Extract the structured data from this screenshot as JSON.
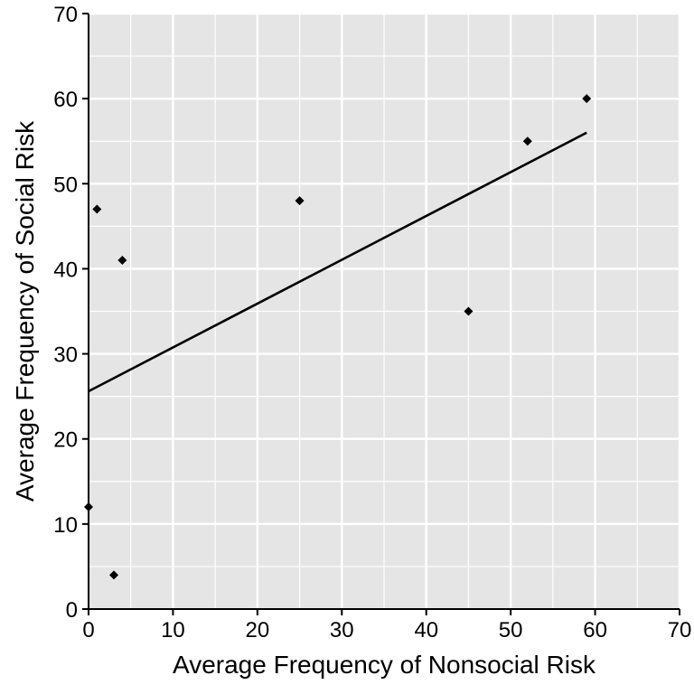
{
  "chart_data": {
    "type": "scatter",
    "title": "",
    "xlabel": "Average Frequency of Nonsocial Risk",
    "ylabel": "Average Frequency of Social Risk",
    "xlim": [
      0,
      70
    ],
    "ylim": [
      0,
      70
    ],
    "x_ticks": [
      0,
      10,
      20,
      30,
      40,
      50,
      60,
      70
    ],
    "y_ticks": [
      0,
      10,
      20,
      30,
      40,
      50,
      60,
      70
    ],
    "grid": true,
    "legend": "none",
    "points": [
      {
        "x": 0,
        "y": 12
      },
      {
        "x": 1,
        "y": 47
      },
      {
        "x": 3,
        "y": 4
      },
      {
        "x": 4,
        "y": 41
      },
      {
        "x": 25,
        "y": 48
      },
      {
        "x": 45,
        "y": 35
      },
      {
        "x": 52,
        "y": 55
      },
      {
        "x": 59,
        "y": 60
      }
    ],
    "trendline": {
      "x": [
        0,
        59
      ],
      "y": [
        25.6,
        56.0
      ]
    },
    "colors": {
      "panel_background": "#e5e5e5",
      "grid": "#ffffff",
      "points": "#000000",
      "trendline": "#000000",
      "axis": "#000000"
    }
  }
}
